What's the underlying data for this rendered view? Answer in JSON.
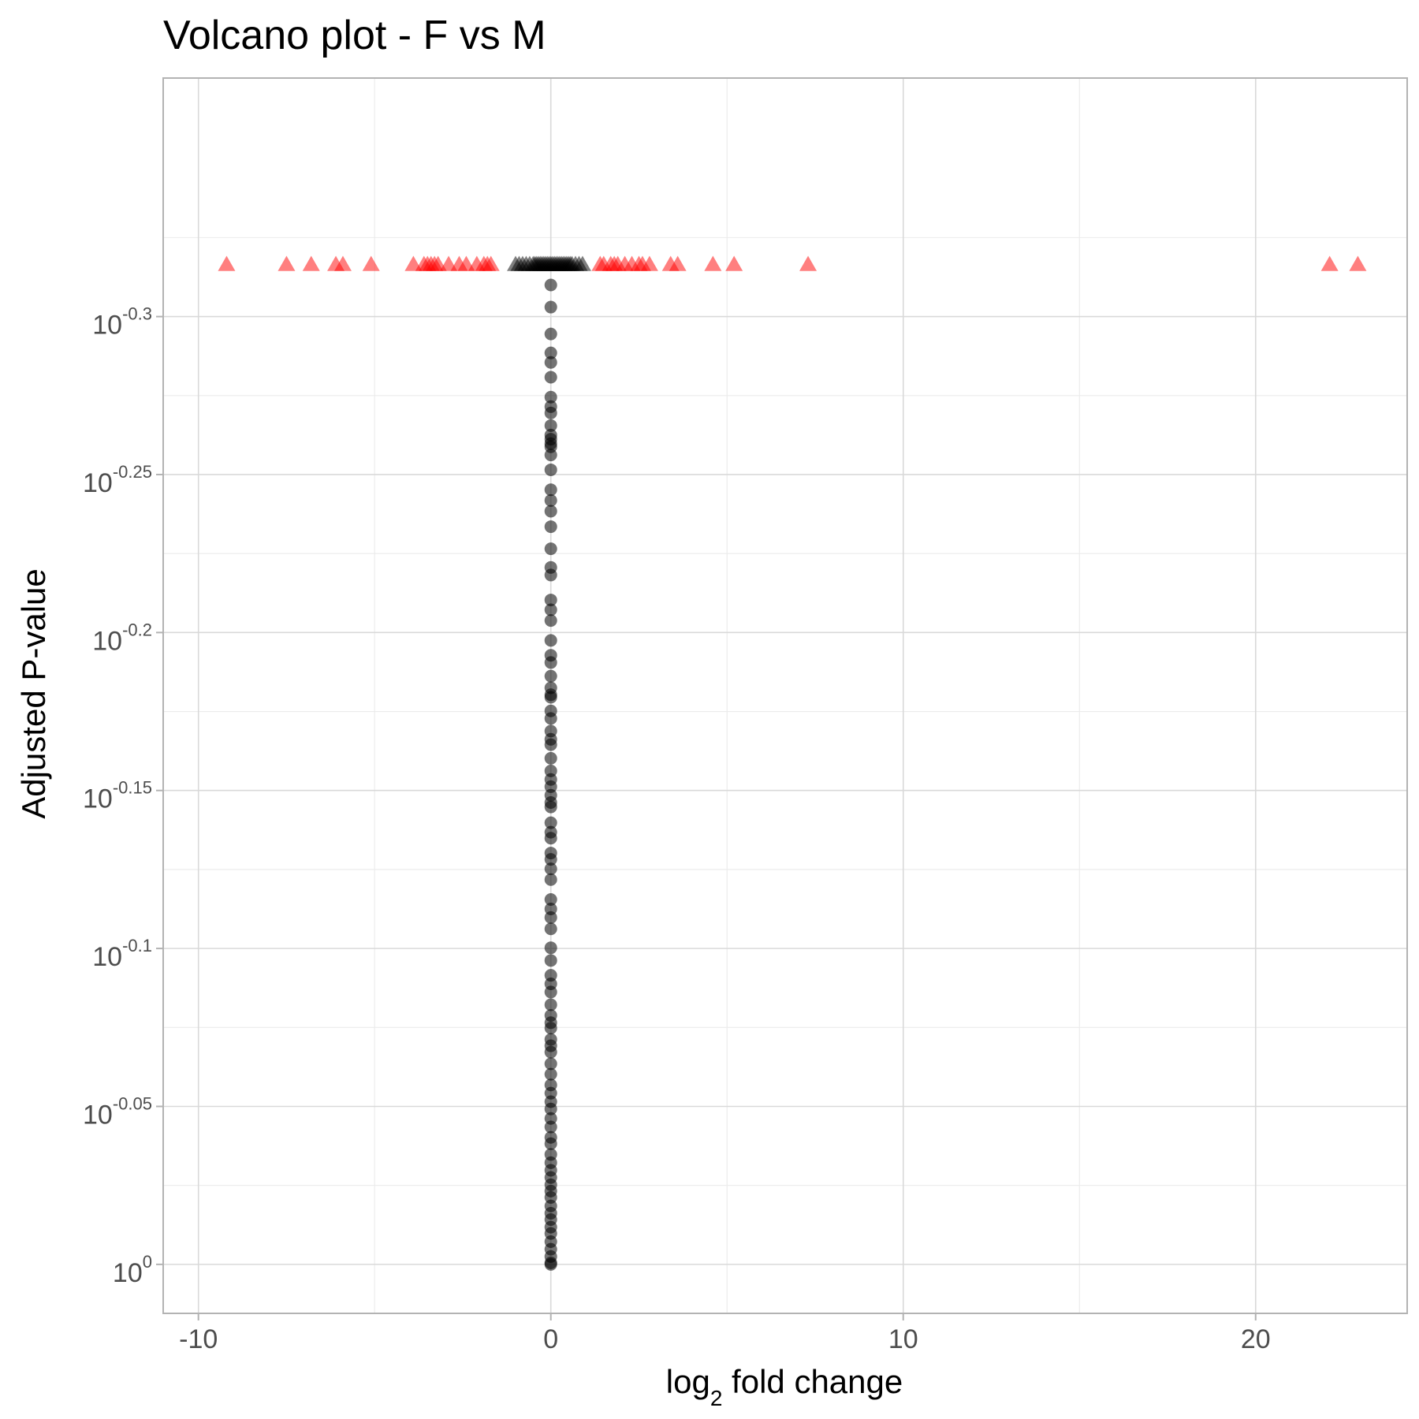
{
  "chart_data": {
    "type": "scatter",
    "title": "Volcano plot - F vs M",
    "xlabel": {
      "base": "log",
      "sub": "2",
      "rest": " fold change"
    },
    "ylabel": "Adjusted P-value",
    "x_axis": {
      "range": [
        -11,
        24.3
      ],
      "ticks": [
        {
          "value": -10,
          "label": "-10"
        },
        {
          "value": 0,
          "label": "0"
        },
        {
          "value": 10,
          "label": "10"
        },
        {
          "value": 20,
          "label": "20"
        }
      ],
      "minor": [
        -5,
        5,
        15
      ]
    },
    "y_axis": {
      "scale": "log10-reversed",
      "range_exponent": [
        0.0155,
        -0.3755
      ],
      "ticks": [
        {
          "exponent": 0,
          "base": "10",
          "exp_label": "0"
        },
        {
          "exponent": -0.05,
          "base": "10",
          "exp_label": "-0.05"
        },
        {
          "exponent": -0.1,
          "base": "10",
          "exp_label": "-0.1"
        },
        {
          "exponent": -0.15,
          "base": "10",
          "exp_label": "-0.15"
        },
        {
          "exponent": -0.2,
          "base": "10",
          "exp_label": "-0.2"
        },
        {
          "exponent": -0.25,
          "base": "10",
          "exp_label": "-0.25"
        },
        {
          "exponent": -0.3,
          "base": "10",
          "exp_label": "-0.3"
        }
      ],
      "minor": [
        -0.025,
        -0.075,
        -0.125,
        -0.175,
        -0.225,
        -0.275,
        -0.325
      ]
    },
    "grid": true,
    "legend": "none",
    "colors": {
      "significant": "#ff0000",
      "not_significant": "#000000"
    },
    "series": [
      {
        "marker": "triangle",
        "color": "#ff0000",
        "p_exponent": -0.3165,
        "x": [
          -9.2,
          -7.5,
          -6.8,
          -6.1,
          -5.9,
          -5.1,
          -3.9,
          -3.6,
          -3.5,
          -3.4,
          -3.3,
          -3.2,
          -2.9,
          -2.6,
          -2.4,
          -2.1,
          -1.9,
          -1.8,
          -1.7,
          1.4,
          1.5,
          1.7,
          1.8,
          1.9,
          2.1,
          2.3,
          2.5,
          2.6,
          2.8,
          3.4,
          3.6,
          4.6,
          5.2,
          7.3,
          22.1,
          22.9
        ]
      },
      {
        "marker": "triangle",
        "color": "#000000",
        "p_exponent": -0.3165,
        "x": [
          -1.0,
          -0.9,
          -0.8,
          -0.7,
          -0.6,
          -0.5,
          -0.45,
          -0.4,
          -0.35,
          -0.3,
          -0.25,
          -0.2,
          -0.15,
          -0.1,
          -0.05,
          0.0,
          0.05,
          0.1,
          0.15,
          0.2,
          0.25,
          0.3,
          0.35,
          0.4,
          0.45,
          0.5,
          0.55,
          0.6,
          0.7,
          0.8,
          0.9
        ]
      },
      {
        "marker": "circle",
        "color": "#000000",
        "x_values": [
          0.0
        ],
        "p_exponent": [
          -0.31,
          -0.303,
          -0.2945,
          -0.2885,
          -0.2855,
          -0.2808,
          -0.2745,
          -0.2715,
          -0.2695,
          -0.2655,
          -0.2625,
          -0.2612,
          -0.2598,
          -0.2588,
          -0.2562,
          -0.2515,
          -0.2452,
          -0.2418,
          -0.2384,
          -0.2335,
          -0.2265,
          -0.2206,
          -0.2182,
          -0.2103,
          -0.2072,
          -0.2038,
          -0.1975,
          -0.1928,
          -0.1905,
          -0.1862,
          -0.1825,
          -0.1803,
          -0.1795,
          -0.1752,
          -0.1728,
          -0.1688,
          -0.1662,
          -0.1645,
          -0.1602,
          -0.1562,
          -0.1535,
          -0.1512,
          -0.1485,
          -0.1462,
          -0.1448,
          -0.1398,
          -0.1368,
          -0.1349,
          -0.1302,
          -0.1282,
          -0.1252,
          -0.1218,
          -0.1155,
          -0.1125,
          -0.1098,
          -0.1062,
          -0.1002,
          -0.0962,
          -0.0915,
          -0.0888,
          -0.0862,
          -0.0822,
          -0.0788,
          -0.0765,
          -0.0748,
          -0.0712,
          -0.0692,
          -0.0672,
          -0.0635,
          -0.0602,
          -0.0568,
          -0.0542,
          -0.0515,
          -0.0492,
          -0.0462,
          -0.0435,
          -0.0402,
          -0.0382,
          -0.0348,
          -0.0322,
          -0.0298,
          -0.0275,
          -0.0252,
          -0.0232,
          -0.0212,
          -0.0185,
          -0.0162,
          -0.0142,
          -0.0118,
          -0.0098,
          -0.0072,
          -0.0048,
          -0.0025,
          -0.0005,
          0.0
        ]
      }
    ]
  }
}
